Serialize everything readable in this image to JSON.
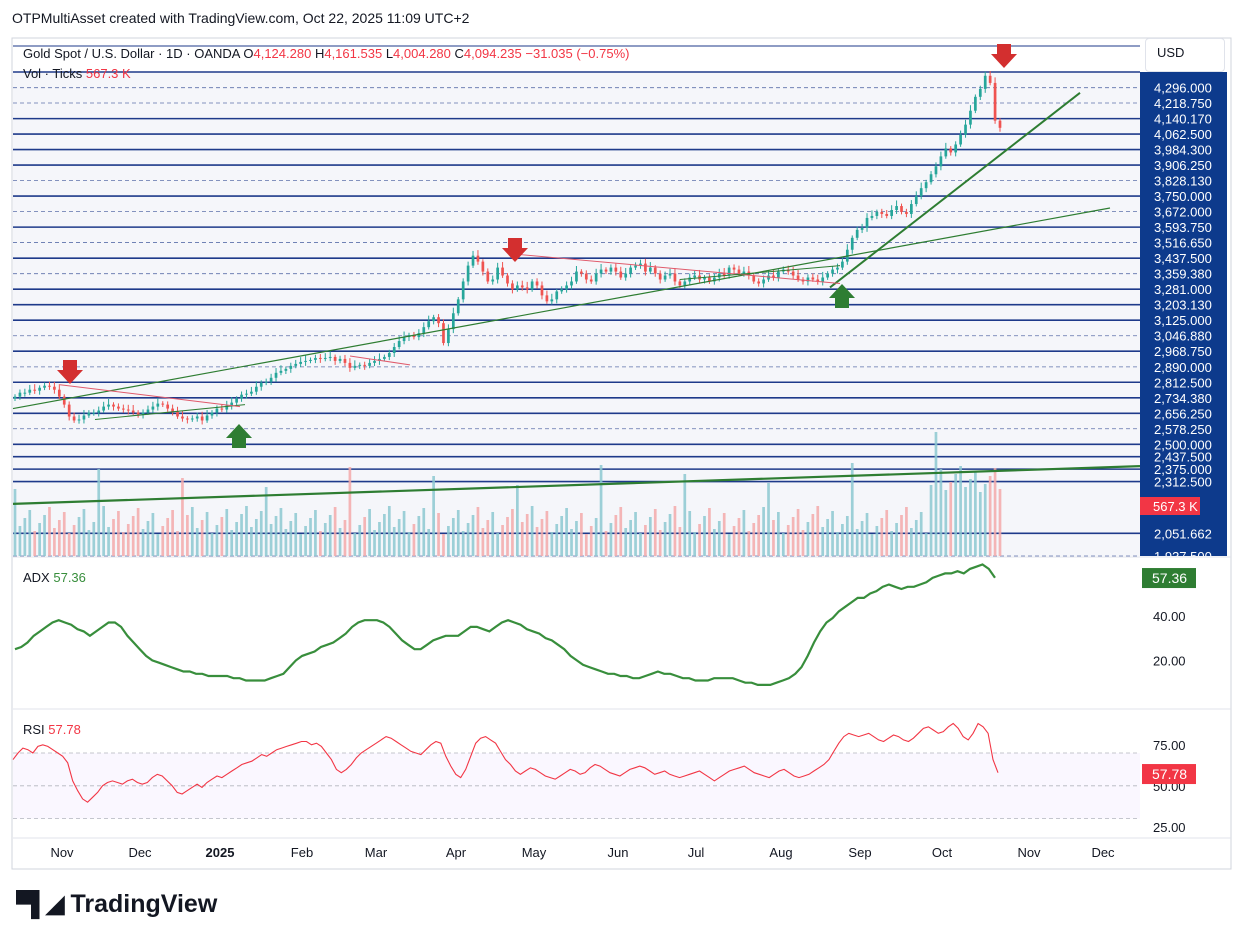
{
  "header": {
    "attribution": "OTPMultiAsset created with TradingView.com, Oct 22, 2025 11:09 UTC+2",
    "currency": "USD"
  },
  "legend": {
    "symbol": "Gold Spot / U.S. Dollar · 1D · OANDA",
    "open_label": "O",
    "open": "4,124.280",
    "high_label": "H",
    "high": "4,161.535",
    "low_label": "L",
    "low": "4,004.280",
    "close_label": "C",
    "close": "4,094.235",
    "change": "−31.035 (−0.75%)",
    "vol_label": "Vol · Ticks",
    "vol": "567.3 K"
  },
  "footer": {
    "brand": "TradingView"
  },
  "colors": {
    "up": "#26a69a",
    "down": "#ef5350",
    "hline": "#1e3a8a",
    "trend": "#2e7d32",
    "adx": "#388e3c",
    "rsi": "#f23645",
    "axis_bg": "#0d3a8c"
  },
  "chart_data": [
    {
      "type": "candlestick",
      "x_ticks": [
        "Nov",
        "Dec",
        "2025",
        "Feb",
        "Mar",
        "Apr",
        "May",
        "Jun",
        "Jul",
        "Aug",
        "Sep",
        "Oct",
        "Nov",
        "Dec"
      ],
      "y_ticks": [
        "4,296.000",
        "4,218.750",
        "4,140.170",
        "4,062.500",
        "3,984.300",
        "3,906.250",
        "3,828.130",
        "3,750.000",
        "3,672.000",
        "3,593.750",
        "3,516.650",
        "3,437.500",
        "3,359.380",
        "3,281.000",
        "3,203.130",
        "3,125.000",
        "3,046.880",
        "2,968.750",
        "2,890.000",
        "2,812.500",
        "2,734.380",
        "2,656.250",
        "2,578.250",
        "2,500.000",
        "2,437.500",
        "2,375.000",
        "2,312.500",
        "2,051.662",
        "1,937.500"
      ],
      "solid_levels": [
        4375,
        4140.17,
        4062.5,
        3984.3,
        3906.25,
        3750,
        3593.75,
        3437.5,
        3281,
        3203.13,
        3125,
        2968.75,
        2812.5,
        2734.38,
        2656.25,
        2500,
        2437.5,
        2375,
        2312.5,
        2051.662
      ],
      "ylim": [
        1937.5,
        4375
      ],
      "last_price_label": "567.3 K",
      "close_series": [
        2740,
        2760,
        2760,
        2775,
        2770,
        2785,
        2795,
        2790,
        2775,
        2740,
        2700,
        2640,
        2620,
        2625,
        2645,
        2660,
        2660,
        2670,
        2690,
        2700,
        2690,
        2680,
        2675,
        2670,
        2660,
        2650,
        2660,
        2675,
        2690,
        2705,
        2700,
        2680,
        2665,
        2640,
        2630,
        2625,
        2630,
        2640,
        2620,
        2645,
        2660,
        2680,
        2675,
        2695,
        2710,
        2730,
        2750,
        2755,
        2765,
        2790,
        2810,
        2815,
        2835,
        2860,
        2870,
        2880,
        2895,
        2905,
        2915,
        2920,
        2925,
        2935,
        2930,
        2935,
        2940,
        2920,
        2930,
        2910,
        2885,
        2895,
        2900,
        2895,
        2910,
        2920,
        2930,
        2940,
        2960,
        2990,
        3020,
        3040,
        3050,
        3040,
        3060,
        3090,
        3120,
        3140,
        3110,
        3010,
        3080,
        3160,
        3230,
        3320,
        3400,
        3450,
        3420,
        3370,
        3320,
        3330,
        3390,
        3350,
        3310,
        3280,
        3300,
        3290,
        3280,
        3320,
        3300,
        3250,
        3220,
        3230,
        3270,
        3280,
        3300,
        3320,
        3370,
        3360,
        3330,
        3320,
        3360,
        3380,
        3370,
        3390,
        3370,
        3340,
        3360,
        3390,
        3400,
        3410,
        3370,
        3390,
        3360,
        3330,
        3350,
        3360,
        3320,
        3300,
        3320,
        3340,
        3350,
        3330,
        3340,
        3320,
        3340,
        3360,
        3350,
        3390,
        3380,
        3360,
        3370,
        3350,
        3320,
        3310,
        3330,
        3350,
        3340,
        3370,
        3380,
        3370,
        3350,
        3330,
        3320,
        3340,
        3330,
        3320,
        3340,
        3360,
        3380,
        3390,
        3420,
        3480,
        3540,
        3580,
        3590,
        3640,
        3650,
        3670,
        3660,
        3650,
        3680,
        3700,
        3670,
        3660,
        3710,
        3750,
        3790,
        3820,
        3860,
        3900,
        3950,
        3990,
        3970,
        4010,
        4060,
        4110,
        4180,
        4250,
        4290,
        4356,
        4320,
        4130,
        4094
      ]
    },
    {
      "type": "line",
      "name": "ADX",
      "current": "57.36",
      "y_ticks": [
        "40.00",
        "20.00"
      ],
      "ylim": [
        0,
        65
      ],
      "values": [
        25,
        26,
        28,
        31,
        33,
        35,
        37,
        38,
        37,
        36,
        34,
        33,
        31,
        33,
        35,
        37,
        37,
        35,
        31,
        28,
        25,
        22,
        20,
        19,
        18,
        17,
        16,
        15,
        15,
        14,
        14,
        13,
        13,
        13,
        13,
        12,
        12,
        11,
        11,
        11,
        11,
        12,
        13,
        14,
        17,
        20,
        22,
        23,
        24,
        26,
        27,
        28,
        30,
        32,
        35,
        37,
        38,
        38,
        38,
        37,
        35,
        32,
        29,
        27,
        25,
        25,
        27,
        29,
        30,
        31,
        31,
        31,
        33,
        35,
        35,
        34,
        33,
        35,
        37,
        38,
        37,
        36,
        34,
        33,
        32,
        30,
        29,
        27,
        25,
        22,
        20,
        18,
        17,
        16,
        15,
        14,
        14,
        13,
        13,
        12,
        12,
        13,
        14,
        15,
        14,
        14,
        13,
        12,
        12,
        11,
        11,
        11,
        12,
        12,
        12,
        12,
        11,
        10,
        10,
        9,
        9,
        9,
        10,
        11,
        12,
        14,
        17,
        22,
        28,
        33,
        37,
        39,
        42,
        44,
        46,
        48,
        48,
        50,
        51,
        53,
        54,
        53,
        52,
        53,
        53,
        54,
        55,
        57,
        58,
        59,
        59,
        60,
        59,
        61,
        62,
        63,
        61,
        57
      ]
    },
    {
      "type": "line",
      "name": "RSI",
      "current": "57.78",
      "y_ticks": [
        "75.00",
        "50.00",
        "25.00"
      ],
      "ylim": [
        20,
        95
      ],
      "values": [
        66,
        70,
        73,
        72,
        70,
        74,
        75,
        74,
        72,
        70,
        68,
        64,
        53,
        47,
        42,
        40,
        43,
        46,
        50,
        52,
        53,
        52,
        51,
        53,
        54,
        52,
        51,
        52,
        55,
        57,
        56,
        53,
        50,
        46,
        45,
        47,
        49,
        51,
        49,
        52,
        54,
        56,
        55,
        57,
        59,
        61,
        63,
        64,
        65,
        67,
        69,
        68,
        70,
        72,
        73,
        74,
        75,
        76,
        77,
        77,
        75,
        76,
        74,
        70,
        66,
        60,
        58,
        60,
        63,
        67,
        70,
        72,
        74,
        76,
        78,
        80,
        79,
        77,
        75,
        73,
        71,
        70,
        69,
        72,
        75,
        77,
        76,
        68,
        62,
        57,
        55,
        60,
        68,
        76,
        79,
        80,
        78,
        76,
        71,
        66,
        63,
        59,
        57,
        59,
        61,
        60,
        58,
        56,
        55,
        54,
        56,
        58,
        60,
        59,
        57,
        58,
        61,
        63,
        62,
        60,
        58,
        57,
        56,
        58,
        60,
        61,
        62,
        61,
        59,
        57,
        58,
        59,
        57,
        56,
        55,
        56,
        57,
        58,
        59,
        57,
        55,
        53,
        55,
        57,
        59,
        60,
        61,
        62,
        60,
        58,
        57,
        56,
        55,
        57,
        59,
        60,
        58,
        56,
        55,
        56,
        57,
        59,
        61,
        63,
        66,
        71,
        76,
        80,
        82,
        81,
        80,
        81,
        82,
        80,
        78,
        77,
        79,
        81,
        80,
        78,
        77,
        79,
        82,
        85,
        86,
        84,
        82,
        83,
        86,
        88,
        85,
        80,
        78,
        82,
        88,
        86,
        82,
        66,
        58
      ]
    }
  ]
}
